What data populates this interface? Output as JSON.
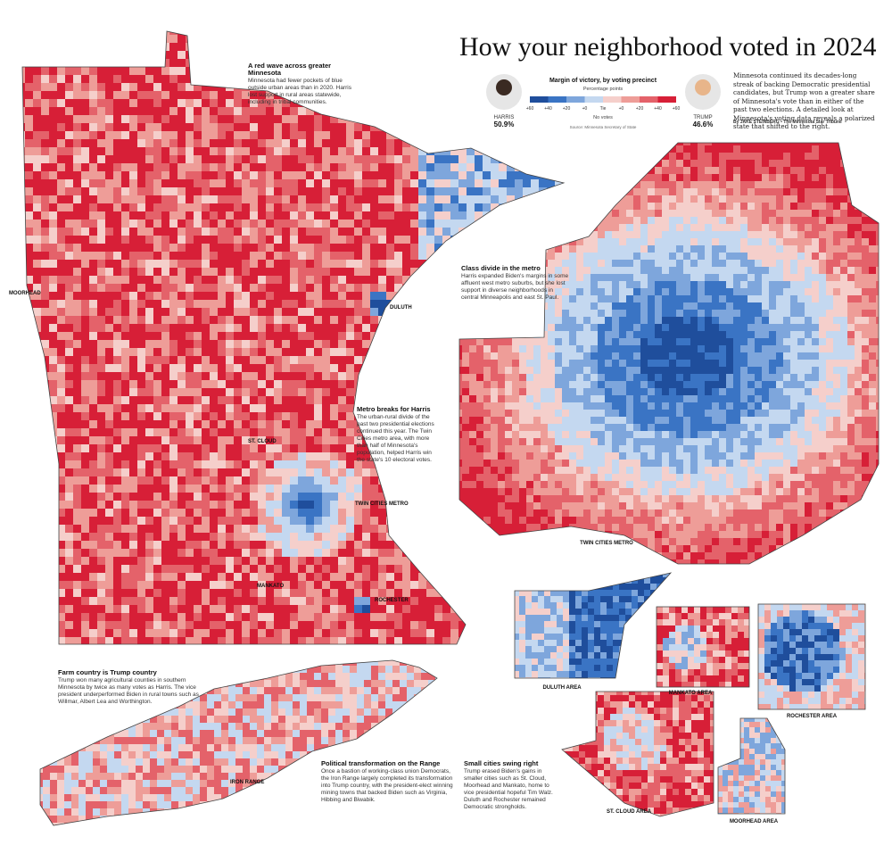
{
  "header": {
    "title": "How your neighborhood voted in 2024",
    "intro": "Minnesota continued its decades-long streak of backing Democratic presidential candidates, but Trump won a greater share of Minnesota's vote than in either of the past two elections. A detailed look at Minnesota's voting data reveals a polarized state that shifted to the right.",
    "byline": "By JAKE STEINBERG • The Minnesota Star Tribune"
  },
  "candidates": [
    {
      "name": "HARRIS",
      "share": "50.9%"
    },
    {
      "name": "TRUMP",
      "share": "46.6%"
    }
  ],
  "legend": {
    "title": "Margin of victory, by voting precinct",
    "subtitle": "Percentage points",
    "labels": [
      "+60",
      "+40",
      "+20",
      "+0",
      "Tie",
      "+0",
      "+20",
      "+40",
      "+60"
    ],
    "no_votes": "No votes",
    "source": "Source: Minnesota Secretary of State"
  },
  "annotations": [
    {
      "title": "A red wave across greater Minnesota",
      "text": "Minnesota had fewer pockets of blue outside urban areas than in 2020. Harris lost support in rural areas statewide, including in tribal communities."
    },
    {
      "title": "Class divide in the metro",
      "text": "Harris expanded Biden's margins in some affluent west metro suburbs, but she lost support in diverse neighborhoods in central Minneapolis and east St. Paul."
    },
    {
      "title": "Metro breaks for Harris",
      "text": "The urban-rural divide of the past two presidential elections continued this year. The Twin Cities metro area, with more than half of Minnesota's population, helped Harris win the state's 10 electoral votes."
    },
    {
      "title": "Farm country is Trump country",
      "text": "Trump won many agricultural counties in southern Minnesota by twice as many votes as Harris. The vice president underperformed Biden in rural towns such as Willmar, Albert Lea and Worthington."
    },
    {
      "title": "Political transformation on the Range",
      "text": "Once a bastion of working-class union Democrats, the Iron Range largely completed its transformation into Trump country, with the president-elect winning mining towns that backed Biden such as Virginia, Hibbing and Biwabik."
    },
    {
      "title": "Small cities swing right",
      "text": "Trump erased Biden's gains in smaller cities such as St. Cloud, Moorhead and Mankato, home to vice presidential hopeful Tim Walz. Duluth and Rochester remained Democratic strongholds."
    }
  ],
  "map_labels": [
    "MOORHEAD",
    "DULUTH",
    "ST. CLOUD",
    "TWIN CITIES METRO",
    "MANKATO",
    "ROCHESTER",
    "IRON RANGE"
  ],
  "insets": [
    "TWIN CITIES METRO",
    "DULUTH AREA",
    "MANKATO AREA",
    "ROCHESTER AREA",
    "ST. CLOUD AREA",
    "MOORHEAD AREA"
  ]
}
